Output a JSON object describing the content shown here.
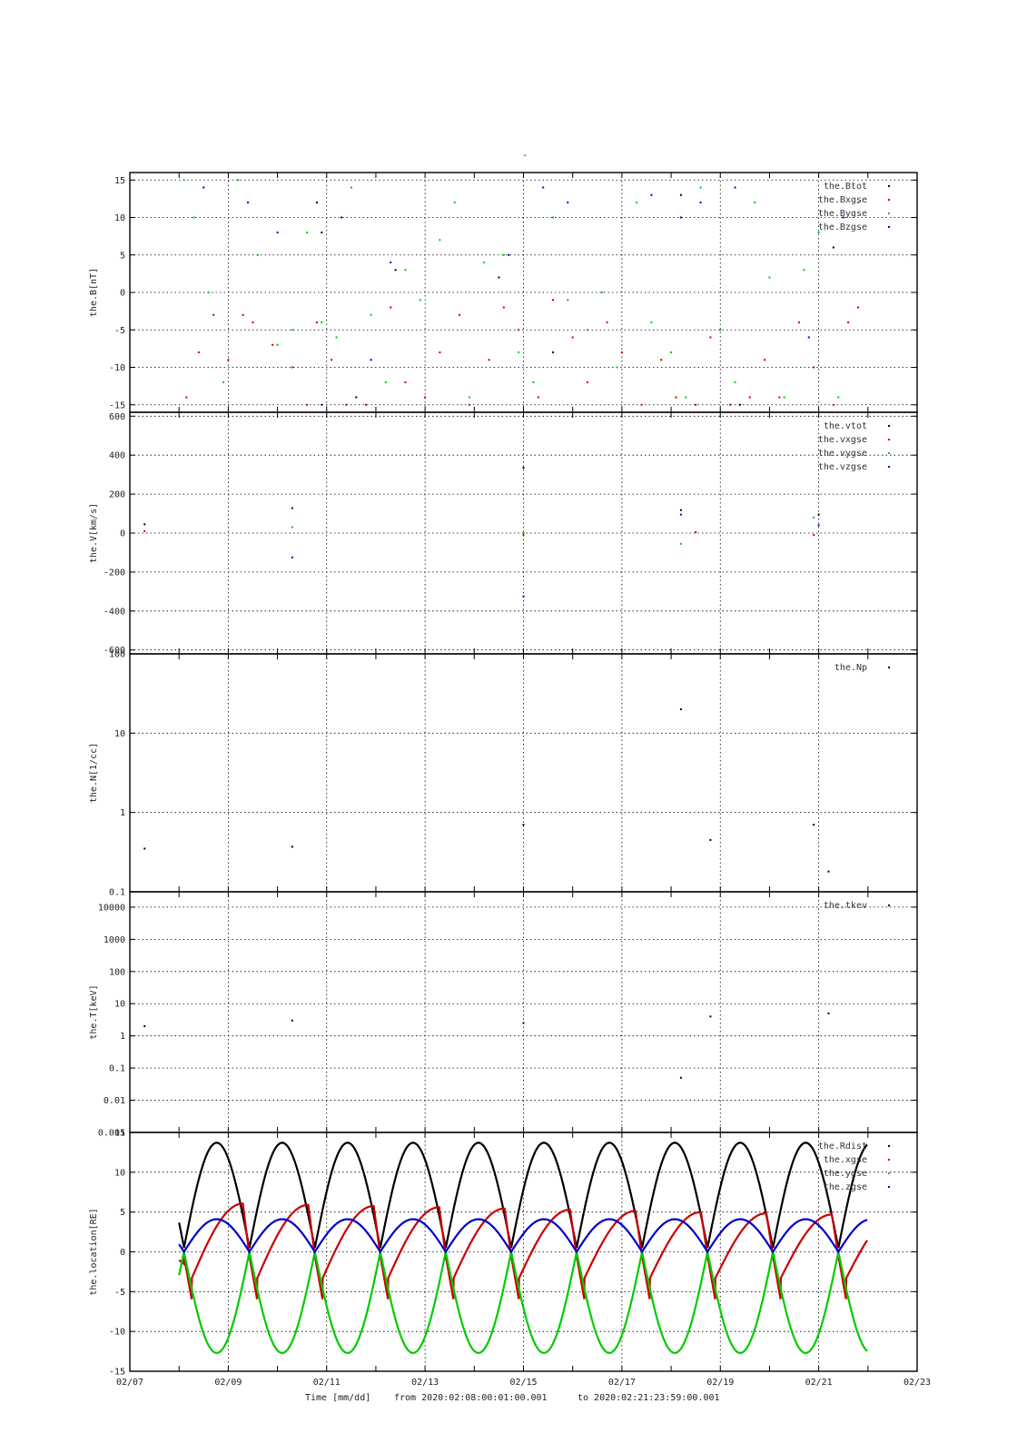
{
  "figure_title": "-",
  "footer": {
    "time_label": "Time [mm/dd]",
    "from_label": "from 2020:02:08:00:01:00.001",
    "to_label": "to  2020:02:21:23:59:00.001"
  },
  "x_axis": {
    "range_days": [
      7,
      23
    ],
    "ticks": [
      {
        "day": 7,
        "label": "02/07"
      },
      {
        "day": 9,
        "label": "02/09"
      },
      {
        "day": 11,
        "label": "02/11"
      },
      {
        "day": 13,
        "label": "02/13"
      },
      {
        "day": 15,
        "label": "02/15"
      },
      {
        "day": 17,
        "label": "02/17"
      },
      {
        "day": 19,
        "label": "02/19"
      },
      {
        "day": 21,
        "label": "02/21"
      },
      {
        "day": 23,
        "label": "02/23"
      }
    ]
  },
  "colors": {
    "black": "#000000",
    "red": "#cc0000",
    "green": "#00cc00",
    "blue": "#0000cc"
  },
  "chart_data": [
    {
      "id": "B",
      "type": "scatter",
      "ylabel": "the.B[nT]",
      "scale": "linear",
      "ylim": [
        -16,
        16
      ],
      "yticks": [
        {
          "v": 15,
          "label": "15"
        },
        {
          "v": 10,
          "label": "10"
        },
        {
          "v": 5,
          "label": "5"
        },
        {
          "v": 0,
          "label": "0"
        },
        {
          "v": -5,
          "label": "-5"
        },
        {
          "v": -10,
          "label": "-10"
        },
        {
          "v": -15,
          "label": "-15"
        }
      ],
      "legend": [
        "the.Btot",
        "the.Bxgse",
        "the.Bygse",
        "the.Bzgse"
      ],
      "series": [
        {
          "name": "the.Btot",
          "color": "#000000",
          "x": [
            10.8,
            10.9,
            11.6,
            12.4,
            14.5,
            15.6,
            18.2,
            19.4,
            21.3
          ],
          "y": [
            12,
            8,
            -14,
            3,
            2,
            -8,
            13,
            -15,
            6
          ]
        },
        {
          "name": "the.Bxgse",
          "color": "#cc0000",
          "x": [
            8.15,
            8.4,
            8.7,
            9.0,
            9.3,
            9.5,
            9.9,
            10.3,
            10.6,
            10.8,
            11.1,
            11.4,
            11.8,
            12.3,
            12.6,
            13.0,
            13.3,
            13.7,
            13.9,
            14.3,
            14.6,
            14.9,
            15.3,
            15.6,
            16.0,
            16.3,
            16.7,
            17.0,
            17.4,
            17.8,
            18.1,
            18.5,
            18.8,
            19.2,
            19.6,
            19.9,
            20.2,
            20.6,
            20.9,
            21.3,
            21.6,
            21.8
          ],
          "y": [
            -14,
            -8,
            -3,
            -9,
            -3,
            -4,
            -7,
            -10,
            -15,
            -4,
            -9,
            -15,
            -15,
            -2,
            -12,
            -14,
            -8,
            -3,
            -15,
            -9,
            -2,
            -5,
            -14,
            -1,
            -6,
            -12,
            -4,
            -8,
            -15,
            -9,
            -14,
            -15,
            -6,
            -15,
            -14,
            -9,
            -14,
            -4,
            -10,
            -15,
            -4,
            -2
          ]
        },
        {
          "name": "the.Bygse",
          "color": "#00cc00",
          "x": [
            8.1,
            8.3,
            8.6,
            8.9,
            9.2,
            9.6,
            10.0,
            10.3,
            10.6,
            10.9,
            11.2,
            11.5,
            11.9,
            12.2,
            12.6,
            12.9,
            13.3,
            13.6,
            13.9,
            14.2,
            14.6,
            14.9,
            15.2,
            15.6,
            15.9,
            16.3,
            16.6,
            16.9,
            17.3,
            17.6,
            18.0,
            18.3,
            18.6,
            19.0,
            19.3,
            19.7,
            20.0,
            20.3,
            20.7,
            21.0,
            21.4,
            21.8
          ],
          "y": [
            15,
            10,
            0,
            -12,
            15,
            5,
            -7,
            -5,
            8,
            -4,
            -6,
            14,
            -3,
            -12,
            3,
            -1,
            7,
            12,
            -14,
            4,
            5,
            -8,
            -12,
            10,
            -1,
            -5,
            0,
            -10,
            12,
            -4,
            -8,
            -14,
            14,
            -5,
            -12,
            12,
            2,
            -14,
            3,
            8,
            -14,
            12
          ]
        },
        {
          "name": "the.Bzgse",
          "color": "#0000cc",
          "x": [
            8.5,
            9.4,
            10.0,
            10.9,
            11.3,
            11.9,
            12.3,
            14.7,
            15.4,
            15.9,
            17.6,
            18.2,
            18.6,
            19.3,
            20.8,
            21.5
          ],
          "y": [
            14,
            12,
            8,
            -15,
            10,
            -9,
            4,
            5,
            14,
            12,
            13,
            10,
            12,
            14,
            -6,
            10
          ]
        }
      ]
    },
    {
      "id": "V",
      "type": "scatter",
      "ylabel": "the.V[km/s]",
      "scale": "linear",
      "ylim": [
        -620,
        620
      ],
      "yticks": [
        {
          "v": 600,
          "label": "600"
        },
        {
          "v": 400,
          "label": "400"
        },
        {
          "v": 200,
          "label": "200"
        },
        {
          "v": 0,
          "label": "0"
        },
        {
          "v": -200,
          "label": "-200"
        },
        {
          "v": -400,
          "label": "-400"
        },
        {
          "v": -600,
          "label": "-600"
        }
      ],
      "legend": [
        "the.vtot",
        "the.vxgse",
        "the.vygse",
        "the.vzgse"
      ],
      "series": [
        {
          "name": "the.vtot",
          "color": "#000000",
          "x": [
            7.3,
            10.3,
            15.0,
            18.2,
            21.0
          ],
          "y": [
            45,
            128,
            335,
            118,
            95
          ]
        },
        {
          "name": "the.vxgse",
          "color": "#cc0000",
          "x": [
            7.3,
            15.0,
            18.5,
            20.9
          ],
          "y": [
            10,
            -10,
            5,
            -10
          ]
        },
        {
          "name": "the.vygse",
          "color": "#00cc00",
          "x": [
            10.3,
            15.0,
            18.2,
            20.9
          ],
          "y": [
            30,
            0,
            -55,
            80
          ]
        },
        {
          "name": "the.vzgse",
          "color": "#0000cc",
          "x": [
            10.3,
            15.0,
            18.2,
            21.0
          ],
          "y": [
            -125,
            -325,
            95,
            40
          ]
        }
      ]
    },
    {
      "id": "N",
      "type": "scatter",
      "ylabel": "the.N[1/cc]",
      "scale": "log",
      "ylim": [
        0.1,
        100
      ],
      "yticks": [
        {
          "v": 100,
          "label": "100"
        },
        {
          "v": 10,
          "label": "10"
        },
        {
          "v": 1,
          "label": "1"
        },
        {
          "v": 0.1,
          "label": "0.1"
        }
      ],
      "legend": [
        "the.Np"
      ],
      "series": [
        {
          "name": "the.Np",
          "color": "#000000",
          "x": [
            7.3,
            10.3,
            15.0,
            18.2,
            18.8,
            20.9,
            21.2
          ],
          "y": [
            0.35,
            0.37,
            0.7,
            20,
            0.45,
            0.7,
            0.18
          ]
        }
      ]
    },
    {
      "id": "T",
      "type": "scatter",
      "ylabel": "the.T[keV]",
      "scale": "log",
      "ylim": [
        0.001,
        30000
      ],
      "yticks": [
        {
          "v": 10000,
          "label": "10000"
        },
        {
          "v": 1000,
          "label": "1000"
        },
        {
          "v": 100,
          "label": "100"
        },
        {
          "v": 10,
          "label": "10"
        },
        {
          "v": 1,
          "label": "1"
        },
        {
          "v": 0.1,
          "label": "0.1"
        },
        {
          "v": 0.01,
          "label": "0.01"
        },
        {
          "v": 0.001,
          "label": "0.001"
        }
      ],
      "legend": [
        "the.tkev"
      ],
      "series": [
        {
          "name": "the.tkev",
          "color": "#000000",
          "x": [
            7.3,
            10.3,
            15.0,
            18.2,
            18.8,
            21.2
          ],
          "y": [
            2,
            3,
            2.5,
            0.05,
            4,
            5
          ]
        }
      ]
    },
    {
      "id": "location",
      "type": "line",
      "ylabel": "the.location[RE]",
      "scale": "linear",
      "ylim": [
        -15,
        15
      ],
      "yticks": [
        {
          "v": 15,
          "label": "15"
        },
        {
          "v": 10,
          "label": "10"
        },
        {
          "v": 5,
          "label": "5"
        },
        {
          "v": 0,
          "label": "0"
        },
        {
          "v": -5,
          "label": "-5"
        },
        {
          "v": -10,
          "label": "-10"
        },
        {
          "v": -15,
          "label": "-15"
        }
      ],
      "legend": [
        "the.Rdist",
        "the.xgse",
        "the.ygse",
        "the.zgse"
      ],
      "orbit": {
        "t_start": 8.0,
        "t_end": 21.99,
        "period_days": 1.33,
        "perigee_days": [
          8.1,
          9.43,
          10.76,
          12.09,
          13.42,
          14.75,
          16.08,
          17.41,
          18.74,
          20.07,
          21.4
        ]
      },
      "series": [
        {
          "name": "the.Rdist",
          "color": "#000000",
          "peak": 13.7,
          "min": 0.5
        },
        {
          "name": "the.xgse",
          "color": "#cc0000",
          "peak_first": 6.2,
          "peak_last": 4.6,
          "min": -3.3
        },
        {
          "name": "the.ygse",
          "color": "#00cc00",
          "peak": -12.7,
          "min": 0
        },
        {
          "name": "the.zgse",
          "color": "#0000cc",
          "peak": 4.1,
          "min": 0
        }
      ]
    }
  ]
}
